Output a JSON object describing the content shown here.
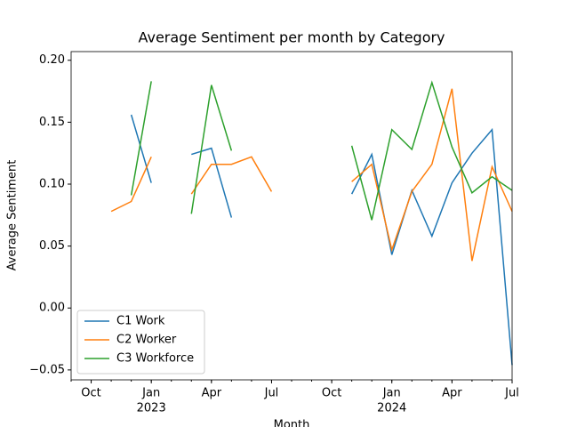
{
  "chart_data": {
    "type": "line",
    "title": "Average Sentiment per month by Category",
    "x_label": "Month",
    "y_label": "Average Sentiment",
    "x": [
      "2022-09",
      "2022-10",
      "2022-11",
      "2022-12",
      "2023-01",
      "2023-02",
      "2023-03",
      "2023-04",
      "2023-05",
      "2023-06",
      "2023-07",
      "2023-08",
      "2023-09",
      "2023-10",
      "2023-11",
      "2023-12",
      "2024-01",
      "2024-02",
      "2024-03",
      "2024-04",
      "2024-05",
      "2024-06",
      "2024-07"
    ],
    "xlim": [
      "2022-09",
      "2024-07"
    ],
    "xticks": [
      {
        "value": "2022-10",
        "label": "Oct"
      },
      {
        "value": "2023-01",
        "label": "Jan",
        "year": "2023"
      },
      {
        "value": "2023-04",
        "label": "Apr"
      },
      {
        "value": "2023-07",
        "label": "Jul"
      },
      {
        "value": "2023-10",
        "label": "Oct"
      },
      {
        "value": "2024-01",
        "label": "Jan",
        "year": "2024"
      },
      {
        "value": "2024-04",
        "label": "Apr"
      },
      {
        "value": "2024-07",
        "label": "Jul"
      }
    ],
    "ylim": [
      -0.058,
      0.207
    ],
    "yticks": [
      {
        "value": -0.05,
        "label": "−0.05"
      },
      {
        "value": 0,
        "label": "0.00"
      },
      {
        "value": 0.05,
        "label": "0.05"
      },
      {
        "value": 0.1,
        "label": "0.10"
      },
      {
        "value": 0.15,
        "label": "0.15"
      },
      {
        "value": 0.2,
        "label": "0.20"
      }
    ],
    "legend": "lower left",
    "series": [
      {
        "name": "C1 Work",
        "color": "#1f77b4",
        "values": [
          null,
          null,
          null,
          0.156,
          0.101,
          null,
          0.124,
          0.129,
          0.073,
          null,
          null,
          null,
          null,
          null,
          0.092,
          0.124,
          0.043,
          0.095,
          0.058,
          0.101,
          0.125,
          0.144,
          -0.046
        ]
      },
      {
        "name": "C2 Worker",
        "color": "#ff7f0e",
        "values": [
          null,
          null,
          0.078,
          0.086,
          0.122,
          null,
          0.092,
          0.116,
          0.116,
          0.122,
          0.094,
          null,
          null,
          null,
          0.102,
          0.116,
          0.047,
          0.094,
          0.116,
          0.177,
          0.038,
          0.114,
          0.078
        ]
      },
      {
        "name": "C3 Workforce",
        "color": "#2ca02c",
        "values": [
          null,
          null,
          null,
          0.091,
          0.183,
          null,
          0.076,
          0.18,
          0.127,
          null,
          null,
          null,
          null,
          null,
          0.131,
          0.071,
          0.144,
          0.128,
          0.182,
          0.13,
          0.093,
          0.106,
          0.095
        ]
      }
    ]
  }
}
